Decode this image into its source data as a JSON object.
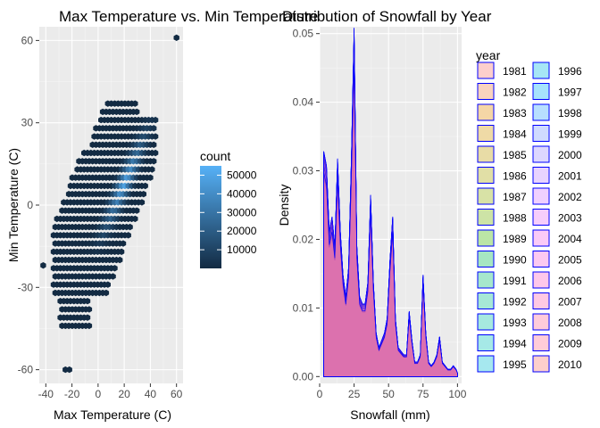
{
  "chart_data": [
    {
      "type": "hexbin",
      "title": "Max Temperature vs. Min Temperature",
      "xlabel": "Max Temperature (C)",
      "ylabel": "Min Temperature (C)",
      "xlim": [
        -45,
        65
      ],
      "ylim": [
        -65,
        65
      ],
      "xticks": [
        -40,
        -20,
        0,
        20,
        40,
        60
      ],
      "yticks": [
        -60,
        -30,
        0,
        30,
        60
      ],
      "grid": true,
      "legend": {
        "title": "count",
        "placement": "right",
        "range": [
          1,
          55000
        ],
        "ticks": [
          10000,
          20000,
          30000,
          40000,
          50000
        ],
        "tick_labels": [
          "10000",
          "20000",
          "30000",
          "40000",
          "50000"
        ],
        "colors": [
          "#132B43",
          "#56B1F7"
        ]
      },
      "note_points": [
        [
          60,
          61
        ],
        [
          -22,
          -60
        ],
        [
          -25,
          -60
        ],
        [
          -42,
          -22
        ]
      ]
    },
    {
      "type": "density",
      "title": "Distribution of Snowfall by Year",
      "xlabel": "Snowfall (mm)",
      "ylabel": "Density",
      "xlim": [
        0,
        103
      ],
      "ylim": [
        -0.001,
        0.051
      ],
      "xticks": [
        0,
        25,
        50,
        75,
        100
      ],
      "yticks": [
        0.0,
        0.01,
        0.02,
        0.03,
        0.04,
        0.05
      ],
      "ytick_labels": [
        "0.00",
        "0.01",
        "0.02",
        "0.03",
        "0.04",
        "0.05"
      ],
      "grid": true,
      "legend": {
        "title": "year",
        "placement": "right",
        "outline_color": "#0000FF"
      },
      "series": [
        {
          "name": "1981",
          "color": "#F8766D"
        },
        {
          "name": "1982",
          "color": "#EE8044"
        },
        {
          "name": "1983",
          "color": "#E18A00"
        },
        {
          "name": "1984",
          "color": "#D09400"
        },
        {
          "name": "1985",
          "color": "#BE9C00"
        },
        {
          "name": "1986",
          "color": "#A8A400"
        },
        {
          "name": "1987",
          "color": "#8EAB00"
        },
        {
          "name": "1988",
          "color": "#6FB000"
        },
        {
          "name": "1989",
          "color": "#3CB500"
        },
        {
          "name": "1990",
          "color": "#00B84F"
        },
        {
          "name": "1991",
          "color": "#00BB6E"
        },
        {
          "name": "1992",
          "color": "#00BE8A"
        },
        {
          "name": "1993",
          "color": "#00BFA3"
        },
        {
          "name": "1994",
          "color": "#00BFBB"
        },
        {
          "name": "1995",
          "color": "#00BDD0"
        },
        {
          "name": "1996",
          "color": "#00B8E3"
        },
        {
          "name": "1997",
          "color": "#00B0F6"
        },
        {
          "name": "1998",
          "color": "#35A2FF"
        },
        {
          "name": "1999",
          "color": "#7997FF"
        },
        {
          "name": "2000",
          "color": "#9F8CFF"
        },
        {
          "name": "2001",
          "color": "#BD81FF"
        },
        {
          "name": "2002",
          "color": "#D377FF"
        },
        {
          "name": "2003",
          "color": "#E46FF4"
        },
        {
          "name": "2004",
          "color": "#F066E8"
        },
        {
          "name": "2005",
          "color": "#F763D6"
        },
        {
          "name": "2006",
          "color": "#FC62C2"
        },
        {
          "name": "2007",
          "color": "#FF64AE"
        },
        {
          "name": "2008",
          "color": "#FF6A96"
        },
        {
          "name": "2009",
          "color": "#FF6C90"
        },
        {
          "name": "2010",
          "color": "#F8766D"
        }
      ],
      "density_curve": {
        "x": [
          3,
          5,
          7,
          9,
          11,
          13,
          15,
          17,
          19,
          21,
          23,
          25,
          27,
          29,
          31,
          33,
          35,
          37,
          39,
          41,
          43,
          45,
          47,
          49,
          51,
          53,
          55,
          57,
          59,
          61,
          63,
          65,
          67,
          69,
          71,
          73,
          75,
          77,
          79,
          81,
          83,
          85,
          87,
          89,
          91,
          93,
          95,
          97,
          99,
          100
        ],
        "y": [
          0.031,
          0.029,
          0.02,
          0.022,
          0.018,
          0.03,
          0.02,
          0.014,
          0.011,
          0.015,
          0.03,
          0.048,
          0.018,
          0.011,
          0.01,
          0.01,
          0.013,
          0.025,
          0.013,
          0.006,
          0.004,
          0.005,
          0.006,
          0.008,
          0.016,
          0.022,
          0.008,
          0.004,
          0.0035,
          0.003,
          0.003,
          0.009,
          0.005,
          0.002,
          0.002,
          0.003,
          0.014,
          0.006,
          0.002,
          0.0015,
          0.002,
          0.003,
          0.0055,
          0.002,
          0.0015,
          0.001,
          0.001,
          0.0015,
          0.001,
          0.0005
        ]
      }
    }
  ]
}
